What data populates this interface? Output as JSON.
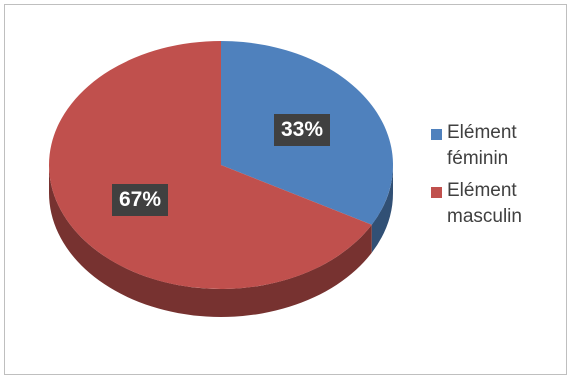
{
  "chart_data": {
    "type": "pie",
    "title": "",
    "categories": [
      "Elément féminin",
      "Elément masculin"
    ],
    "values": [
      33,
      67
    ],
    "data_labels": [
      "33%",
      "67%"
    ],
    "colors": [
      "#4f81bd",
      "#c0504d"
    ],
    "legend": {
      "placement": "right",
      "entries": [
        "Elément\nféminin",
        "Elément\nmasculin"
      ]
    },
    "style": "3d"
  }
}
